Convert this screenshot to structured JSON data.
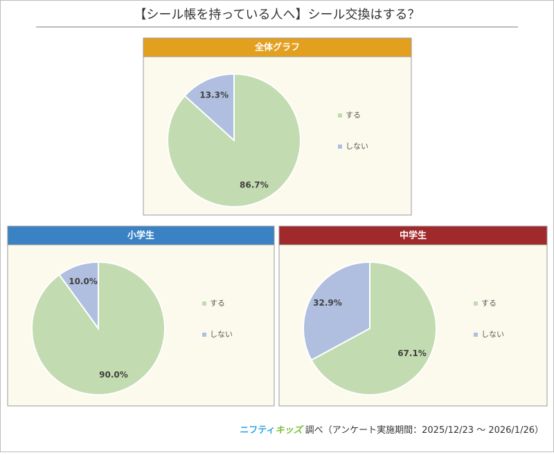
{
  "title": "【シール帳を持っている人へ】シール交換はする？",
  "footer": {
    "brand_1": "ニフティ",
    "brand_2": "キッズ",
    "text": "調べ（アンケート実施期間：2025/12/23 ～ 2026/1/26）"
  },
  "chart_data": [
    {
      "type": "pie",
      "title": "全体グラフ",
      "title_color": "#e3a01f",
      "categories": [
        "する",
        "しない"
      ],
      "values": [
        86.7,
        13.3
      ],
      "value_labels": [
        "86.7%",
        "13.3%"
      ],
      "colors": [
        "#c3dbb0",
        "#b0bfe0"
      ]
    },
    {
      "type": "pie",
      "title": "小学生",
      "title_color": "#3a82c4",
      "categories": [
        "する",
        "しない"
      ],
      "values": [
        90.0,
        10.0
      ],
      "value_labels": [
        "90.0%",
        "10.0%"
      ],
      "colors": [
        "#c3dbb0",
        "#b0bfe0"
      ]
    },
    {
      "type": "pie",
      "title": "中学生",
      "title_color": "#a0292b",
      "categories": [
        "する",
        "しない"
      ],
      "values": [
        67.1,
        32.9
      ],
      "value_labels": [
        "67.1%",
        "32.9%"
      ],
      "colors": [
        "#c3dbb0",
        "#b0bfe0"
      ]
    }
  ]
}
